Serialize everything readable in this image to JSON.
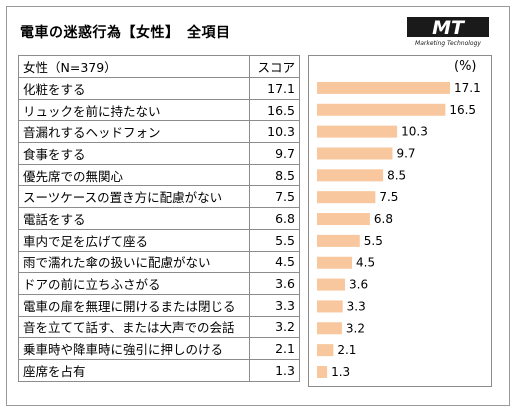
{
  "title": "電車の迷惑行為【女性】　全項目",
  "logo": {
    "text": "MT",
    "subtext": "Marketing Technology"
  },
  "table": {
    "header_label": "女性（N=379）",
    "header_score": "スコア"
  },
  "chart_data": {
    "type": "bar",
    "orientation": "horizontal",
    "unit": "(%)",
    "bar_color": "#f8c79d",
    "categories": [
      "化粧をする",
      "リュックを前に持たない",
      "音漏れするヘッドフォン",
      "食事をする",
      "優先席での無関心",
      "スーツケースの置き方に配慮がない",
      "電話をする",
      "車内で足を広げて座る",
      "雨で濡れた傘の扱いに配慮がない",
      "ドアの前に立ちふさがる",
      "電車の扉を無理に開けるまたは閉じる",
      "音を立てて話す、または大声での会話",
      "乗車時や降車時に強引に押しのける",
      "座席を占有"
    ],
    "values": [
      17.1,
      16.5,
      10.3,
      9.7,
      8.5,
      7.5,
      6.8,
      5.5,
      4.5,
      3.6,
      3.3,
      3.2,
      2.1,
      1.3
    ],
    "value_labels": [
      "17.1",
      "16.5",
      "10.3",
      "9.7",
      "8.5",
      "7.5",
      "6.8",
      "5.5",
      "4.5",
      "3.6",
      "3.3",
      "3.2",
      "2.1",
      "1.3"
    ],
    "xlim": [
      0,
      18
    ]
  }
}
